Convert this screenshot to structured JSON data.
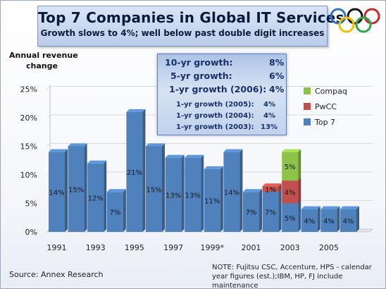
{
  "header": {
    "title": "Top 7 Companies in Global IT Services",
    "subtitle": "Growth slows to 4%; well below past double digit increases"
  },
  "yaxis_label": {
    "line1": "Annual  revenue",
    "line2": "change"
  },
  "growth_box": {
    "rows": [
      {
        "label": "10-yr growth:",
        "value": "8%"
      },
      {
        "label": "5-yr growth:",
        "value": "6%"
      },
      {
        "label": "1-yr growth (2006):",
        "value": "4%"
      },
      {
        "label": "1-yr growth (2005):",
        "value": "4%"
      },
      {
        "label": "1-yr growth (2004):",
        "value": "4%"
      },
      {
        "label": "1-yr growth (2003):",
        "value": "13%"
      }
    ]
  },
  "legend": [
    {
      "name": "Compaq",
      "color": "#8fc24a"
    },
    {
      "name": "PwCC",
      "color": "#c0504d"
    },
    {
      "name": "Top 7",
      "color": "#4f81bd"
    }
  ],
  "source": "Source: Annex Research",
  "note": "NOTE: Fujitsu CSC, Accenture, HPS - calendar year figures (est.);IBM, HP, FJ include maintenance",
  "colors": {
    "top7": "#4f81bd",
    "pwcc": "#c0504d",
    "compaq": "#8fc24a",
    "grid": "#d9d9d9"
  },
  "icon": "olympic-rings-icon",
  "chart_data": {
    "type": "bar",
    "stacked": true,
    "three_d": true,
    "categories": [
      "1991",
      "1992",
      "1993",
      "1994",
      "1995",
      "1996",
      "1997",
      "1998",
      "1999*",
      "2000",
      "2001",
      "2002",
      "2003",
      "2004",
      "2005",
      "2006"
    ],
    "x_tick_labels": [
      "1991",
      "",
      "1993",
      "",
      "1995",
      "",
      "1997",
      "",
      "1999*",
      "",
      "2001",
      "",
      "2003",
      "",
      "2005",
      ""
    ],
    "series": [
      {
        "name": "Top 7",
        "values": [
          14,
          15,
          12,
          7,
          21,
          15,
          13,
          13,
          11,
          14,
          7,
          7,
          5,
          4,
          4,
          4
        ],
        "labels": [
          "14%",
          "15%",
          "12%",
          "7%",
          "21%",
          "15%",
          "13%",
          "13%",
          "11%",
          "14%",
          "7%",
          "7%",
          "5%",
          "4%",
          "4%",
          "4%"
        ]
      },
      {
        "name": "PwCC",
        "values": [
          0,
          0,
          0,
          0,
          0,
          0,
          0,
          0,
          0,
          0,
          0,
          1,
          4,
          0,
          0,
          0
        ],
        "labels": [
          "",
          "",
          "",
          "",
          "",
          "",
          "",
          "",
          "",
          "",
          "",
          "1%",
          "4%",
          "",
          "",
          ""
        ]
      },
      {
        "name": "Compaq",
        "values": [
          0,
          0,
          0,
          0,
          0,
          0,
          0,
          0,
          0,
          0,
          0,
          0,
          5,
          0,
          0,
          0
        ],
        "labels": [
          "",
          "",
          "",
          "",
          "",
          "",
          "",
          "",
          "",
          "",
          "",
          "",
          "5%",
          "",
          "",
          ""
        ]
      }
    ],
    "yticks": [
      "0%",
      "5%",
      "10%",
      "15%",
      "20%",
      "25%"
    ],
    "ylim": [
      0,
      25
    ],
    "grid": true,
    "legend_position": "right"
  }
}
